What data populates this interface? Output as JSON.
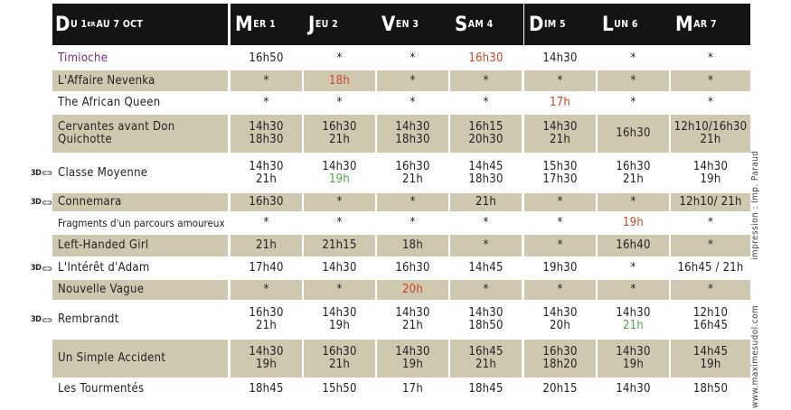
{
  "header": {
    "period_initial": "D",
    "period_rest": "U 1",
    "period_sup": "ER",
    "period_tail": " AU 7 OCT",
    "days": [
      {
        "initial": "M",
        "rest": "ER 1"
      },
      {
        "initial": "J",
        "rest": "EU 2"
      },
      {
        "initial": "V",
        "rest": "EN 3"
      },
      {
        "initial": "S",
        "rest": "AM 4"
      },
      {
        "initial": "D",
        "rest": "IM 5"
      },
      {
        "initial": "L",
        "rest": "UN 6"
      },
      {
        "initial": "M",
        "rest": "AR 7"
      }
    ]
  },
  "films": [
    {
      "title": "Timioche",
      "title_color": "#7a2a6e",
      "three_d": "",
      "bg": "white",
      "times": [
        [
          "16h50"
        ],
        [
          "*"
        ],
        [
          "*"
        ],
        [
          "16h30"
        ],
        [
          "14h30"
        ],
        [
          "*"
        ],
        [
          "*"
        ]
      ],
      "colors": [
        "",
        "",
        "",
        "#c8452c",
        "",
        "",
        ""
      ]
    },
    {
      "title": "L'Affaire Nevenka",
      "title_color": "",
      "three_d": "",
      "bg": "tan",
      "times": [
        [
          "*"
        ],
        [
          "18h"
        ],
        [
          "*"
        ],
        [
          "*"
        ],
        [
          "*"
        ],
        [
          "*"
        ],
        [
          "*"
        ]
      ],
      "colors": [
        "",
        "#c8452c",
        "",
        "",
        "",
        "",
        ""
      ]
    },
    {
      "title": "The African Queen",
      "title_color": "",
      "three_d": "",
      "bg": "white",
      "times": [
        [
          "*"
        ],
        [
          "*"
        ],
        [
          "*"
        ],
        [
          "*"
        ],
        [
          "17h"
        ],
        [
          "*"
        ],
        [
          "*"
        ]
      ],
      "colors": [
        "",
        "",
        "",
        "",
        "#c8452c",
        "",
        ""
      ]
    },
    {
      "title": "Cervantes avant Don Quichotte",
      "title_color": "",
      "three_d": "",
      "bg": "tan",
      "times": [
        [
          "14h30",
          "18h30"
        ],
        [
          "16h30",
          "21h"
        ],
        [
          "14h30",
          "18h30"
        ],
        [
          "16h15",
          "20h30"
        ],
        [
          "14h30",
          "21h"
        ],
        [
          "16h30"
        ],
        [
          "12h10/16h30",
          "21h"
        ]
      ],
      "colors": [
        "",
        "",
        "",
        "",
        "",
        "",
        ""
      ]
    },
    {
      "title": "Classe Moyenne",
      "title_color": "",
      "three_d": "3D",
      "bg": "white",
      "times": [
        [
          "14h30",
          "21h"
        ],
        [
          "14h30",
          "19h"
        ],
        [
          "16h30",
          "21h"
        ],
        [
          "14h45",
          "18h30"
        ],
        [
          "15h30",
          "17h30"
        ],
        [
          "16h30",
          "21h"
        ],
        [
          "14h30",
          "19h"
        ]
      ],
      "colors": [
        "",
        "1:#52a44a",
        "",
        "",
        "",
        "",
        ""
      ]
    },
    {
      "title": "Connemara",
      "title_color": "",
      "three_d": "3D",
      "bg": "tan",
      "times": [
        [
          "16h30"
        ],
        [
          "*"
        ],
        [
          "*"
        ],
        [
          "21h"
        ],
        [
          "*"
        ],
        [
          "*"
        ],
        [
          "12h10/ 21h"
        ]
      ],
      "colors": [
        "",
        "",
        "",
        "",
        "",
        "",
        ""
      ]
    },
    {
      "title": "Fragments d'un parcours amoureux",
      "title_color": "",
      "three_d": "",
      "bg": "white",
      "small": true,
      "times": [
        [
          "*"
        ],
        [
          "*"
        ],
        [
          "*"
        ],
        [
          "*"
        ],
        [
          "*"
        ],
        [
          "19h"
        ],
        [
          "*"
        ]
      ],
      "colors": [
        "",
        "",
        "",
        "",
        "",
        "#c8452c",
        ""
      ]
    },
    {
      "title": "Left-Handed Girl",
      "title_color": "",
      "three_d": "",
      "bg": "tan",
      "times": [
        [
          "21h"
        ],
        [
          "21h15"
        ],
        [
          "18h"
        ],
        [
          "*"
        ],
        [
          "*"
        ],
        [
          "16h40"
        ],
        [
          "*"
        ]
      ],
      "colors": [
        "",
        "",
        "",
        "",
        "",
        "",
        ""
      ]
    },
    {
      "title": "L'Intérêt d'Adam",
      "title_color": "",
      "three_d": "3D",
      "bg": "white",
      "times": [
        [
          "17h40"
        ],
        [
          "14h30"
        ],
        [
          "16h30"
        ],
        [
          "14h45"
        ],
        [
          "19h30"
        ],
        [
          "*"
        ],
        [
          "16h45 / 21h"
        ]
      ],
      "colors": [
        "",
        "",
        "",
        "",
        "",
        "",
        ""
      ]
    },
    {
      "title": "Nouvelle Vague",
      "title_color": "",
      "three_d": "",
      "bg": "tan",
      "times": [
        [
          "*"
        ],
        [
          "*"
        ],
        [
          "20h"
        ],
        [
          "*"
        ],
        [
          "*"
        ],
        [
          "*"
        ],
        [
          "*"
        ]
      ],
      "colors": [
        "",
        "",
        "#c8452c",
        "",
        "",
        "",
        ""
      ]
    },
    {
      "title": "Rembrandt",
      "title_color": "",
      "three_d": "3D",
      "bg": "white",
      "times": [
        [
          "16h30",
          "21h"
        ],
        [
          "14h30",
          "19h"
        ],
        [
          "14h30",
          "21h"
        ],
        [
          "14h30",
          "18h50"
        ],
        [
          "14h30",
          "20h"
        ],
        [
          "14h30",
          "21h"
        ],
        [
          "12h10",
          "16h45"
        ]
      ],
      "colors": [
        "",
        "",
        "",
        "",
        "",
        "1:#52a44a",
        ""
      ]
    },
    {
      "title": "Un Simple Accident",
      "title_color": "",
      "three_d": "",
      "bg": "tan",
      "times": [
        [
          "14h30",
          "19h"
        ],
        [
          "16h30",
          "21h"
        ],
        [
          "14h30",
          "19h"
        ],
        [
          "16h45",
          "21h"
        ],
        [
          "16h30",
          "18h20"
        ],
        [
          "14h30",
          "19h"
        ],
        [
          "14h45",
          "19h"
        ]
      ],
      "colors": [
        "",
        "",
        "",
        "",
        "",
        "",
        ""
      ]
    },
    {
      "title": "Les Tourmentés",
      "title_color": "",
      "three_d": "",
      "bg": "white",
      "times": [
        [
          "18h45"
        ],
        [
          "15h50"
        ],
        [
          "17h"
        ],
        [
          "18h45"
        ],
        [
          "20h15"
        ],
        [
          "14h30"
        ],
        [
          "18h50"
        ]
      ],
      "colors": [
        "",
        "",
        "",
        "",
        "",
        "",
        ""
      ]
    }
  ],
  "side_texts": {
    "credit_print": "impression : Imp. Paraud",
    "credit_design": "www.maximesudol.com"
  },
  "colors": {
    "tan": "#cfc8b1",
    "header": "#141414",
    "red": "#c8452c",
    "green": "#52a44a",
    "purple": "#7a2a6e"
  }
}
